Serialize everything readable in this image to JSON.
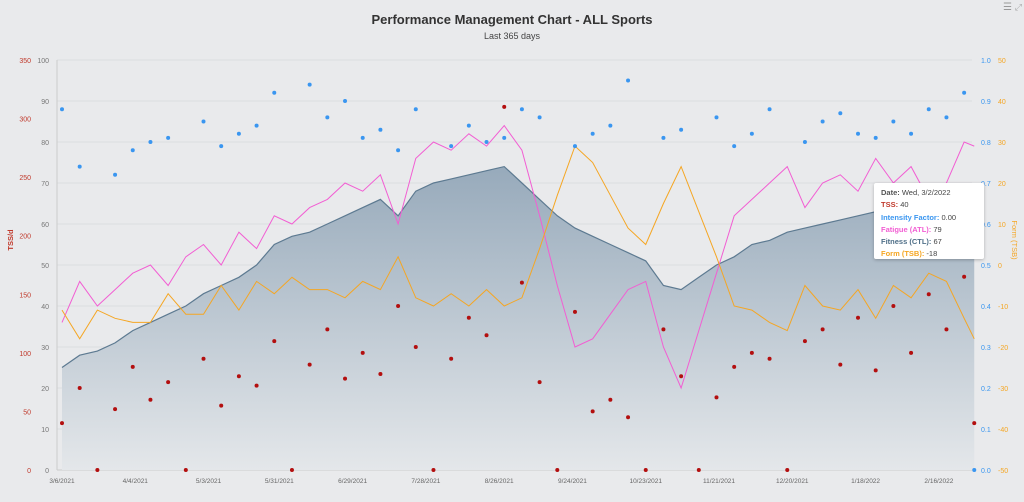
{
  "chart_data": {
    "type": "line",
    "title": "Performance Management Chart - ALL Sports",
    "subtitle": "Last 365 days",
    "x_tick_labels": [
      "3/6/2021",
      "4/4/2021",
      "5/3/2021",
      "5/31/2021",
      "6/29/2021",
      "7/28/2021",
      "8/26/2021",
      "9/24/2021",
      "10/23/2021",
      "11/21/2021",
      "12/20/2021",
      "1/18/2022",
      "2/16/2022"
    ],
    "axes": {
      "tss": {
        "label": "TSS/d",
        "range": [
          0,
          350
        ],
        "ticks": [
          0,
          50,
          100,
          150,
          200,
          250,
          300,
          350
        ],
        "color": "#c0392b"
      },
      "load": {
        "label": "",
        "range": [
          0,
          100
        ],
        "ticks": [
          0,
          10,
          20,
          30,
          40,
          50,
          60,
          70,
          80,
          90,
          100
        ],
        "color": "#777777"
      },
      "intensity": {
        "label": "",
        "range": [
          0,
          1.0
        ],
        "ticks": [
          "0.0",
          "0.1",
          "0.2",
          "0.3",
          "0.4",
          "0.5",
          "0.6",
          "0.7",
          "0.8",
          "0.9",
          "1.0"
        ],
        "color": "#3a96f0"
      },
      "form": {
        "label": "Form (TSB)",
        "range": [
          -50,
          50
        ],
        "ticks": [
          -50,
          -40,
          -30,
          -20,
          -10,
          0,
          10,
          20,
          30,
          40,
          50
        ],
        "color": "#f5a623"
      }
    },
    "grid": true,
    "dates": [
      "3/6/2021",
      "3/13/2021",
      "3/20/2021",
      "3/27/2021",
      "4/3/2021",
      "4/10/2021",
      "4/17/2021",
      "4/24/2021",
      "5/1/2021",
      "5/8/2021",
      "5/15/2021",
      "5/22/2021",
      "5/29/2021",
      "6/5/2021",
      "6/12/2021",
      "6/19/2021",
      "6/26/2021",
      "7/3/2021",
      "7/10/2021",
      "7/17/2021",
      "7/24/2021",
      "7/31/2021",
      "8/7/2021",
      "8/14/2021",
      "8/21/2021",
      "8/28/2021",
      "9/4/2021",
      "9/11/2021",
      "9/18/2021",
      "9/25/2021",
      "10/2/2021",
      "10/9/2021",
      "10/16/2021",
      "10/23/2021",
      "10/30/2021",
      "11/6/2021",
      "11/13/2021",
      "11/20/2021",
      "11/27/2021",
      "12/4/2021",
      "12/11/2021",
      "12/18/2021",
      "12/25/2021",
      "1/1/2022",
      "1/8/2022",
      "1/15/2022",
      "1/22/2022",
      "1/29/2022",
      "2/5/2022",
      "2/12/2022",
      "2/19/2022",
      "2/26/2022",
      "3/2/2022"
    ],
    "series": [
      {
        "name": "Fitness (CTL)",
        "axis": "load",
        "color": "#5d7a91",
        "kind": "area",
        "values": [
          25,
          28,
          29,
          31,
          34,
          36,
          38,
          40,
          43,
          45,
          47,
          50,
          55,
          57,
          58,
          60,
          62,
          64,
          66,
          62,
          68,
          70,
          71,
          72,
          73,
          74,
          70,
          66,
          62,
          59,
          57,
          55,
          53,
          51,
          45,
          44,
          47,
          50,
          52,
          55,
          56,
          58,
          59,
          60,
          61,
          62,
          63,
          65,
          66,
          64,
          66,
          67,
          67
        ]
      },
      {
        "name": "Fatigue (ATL)",
        "axis": "load",
        "color": "#f25ed3",
        "kind": "line",
        "values": [
          36,
          46,
          40,
          44,
          48,
          50,
          45,
          52,
          55,
          50,
          58,
          54,
          62,
          60,
          64,
          66,
          70,
          68,
          72,
          60,
          76,
          80,
          78,
          82,
          79,
          84,
          78,
          62,
          45,
          30,
          32,
          38,
          44,
          46,
          30,
          20,
          34,
          48,
          62,
          66,
          70,
          74,
          64,
          70,
          72,
          68,
          76,
          70,
          74,
          66,
          70,
          80,
          79
        ]
      },
      {
        "name": "Form (TSB)",
        "axis": "form",
        "color": "#f5a623",
        "kind": "line",
        "values": [
          -11,
          -18,
          -11,
          -13,
          -14,
          -14,
          -7,
          -12,
          -12,
          -5,
          -11,
          -4,
          -7,
          -3,
          -6,
          -6,
          -8,
          -4,
          -6,
          2,
          -8,
          -10,
          -7,
          -10,
          -6,
          -10,
          -8,
          4,
          17,
          29,
          25,
          17,
          9,
          5,
          15,
          24,
          13,
          2,
          -10,
          -11,
          -14,
          -16,
          -5,
          -10,
          -11,
          -6,
          -13,
          -5,
          -8,
          -2,
          -4,
          -13,
          -18
        ]
      },
      {
        "name": "TSS",
        "axis": "tss",
        "color": "#b30f0f",
        "kind": "scatter",
        "values": [
          40,
          70,
          0,
          52,
          88,
          60,
          75,
          0,
          95,
          55,
          80,
          72,
          110,
          0,
          90,
          120,
          78,
          100,
          82,
          140,
          105,
          0,
          95,
          130,
          115,
          310,
          160,
          75,
          0,
          135,
          50,
          60,
          45,
          0,
          120,
          80,
          0,
          62,
          88,
          100,
          95,
          0,
          110,
          120,
          90,
          130,
          85,
          140,
          100,
          150,
          120,
          165,
          40
        ]
      },
      {
        "name": "Intensity Factor",
        "axis": "intensity",
        "color": "#3a96f0",
        "kind": "scatter",
        "values": [
          0.88,
          0.74,
          null,
          0.72,
          0.78,
          0.8,
          0.81,
          null,
          0.85,
          0.79,
          0.82,
          0.84,
          0.92,
          null,
          0.94,
          0.86,
          0.9,
          0.81,
          0.83,
          0.78,
          0.88,
          null,
          0.79,
          0.84,
          0.8,
          0.81,
          0.88,
          0.86,
          null,
          0.79,
          0.82,
          0.84,
          0.95,
          null,
          0.81,
          0.83,
          null,
          0.86,
          0.79,
          0.82,
          0.88,
          null,
          0.8,
          0.85,
          0.87,
          0.82,
          0.81,
          0.85,
          0.82,
          0.88,
          0.86,
          0.92,
          0.0
        ]
      }
    ]
  },
  "tooltip": {
    "date_label": "Date:",
    "date_value": "Wed, 3/2/2022",
    "tss_label": "TSS:",
    "tss_value": "40",
    "if_label": "Intensity Factor:",
    "if_value": "0.00",
    "atl_label": "Fatigue (ATL):",
    "atl_value": "79",
    "ctl_label": "Fitness (CTL):",
    "ctl_value": "67",
    "tsb_label": "Form (TSB):",
    "tsb_value": "-18"
  },
  "colors": {
    "tss": "#c0392b",
    "if": "#3a96f0",
    "atl": "#f25ed3",
    "ctl": "#4f6f88",
    "tsb": "#f5a623"
  },
  "icons": {
    "menu": "hamburger-menu-icon",
    "expand": "expand-icon"
  }
}
